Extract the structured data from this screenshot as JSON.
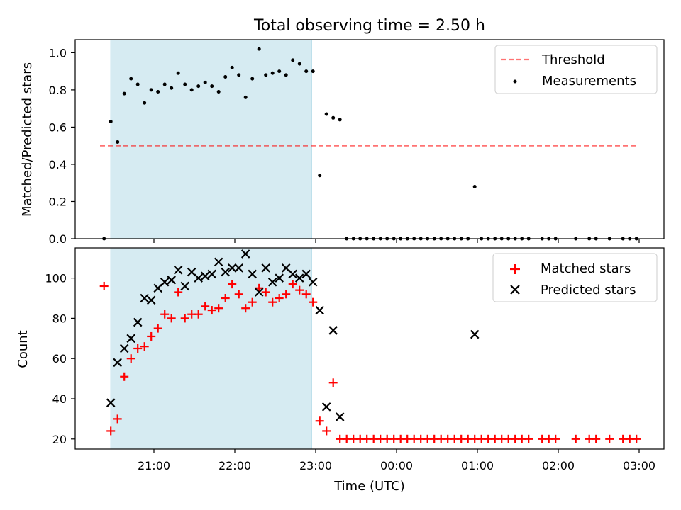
{
  "figure": {
    "title": "Total observing time = 2.50 h"
  },
  "chart_data": [
    {
      "type": "scatter",
      "panel": "top",
      "ylabel": "Matched/Predicted stars",
      "ylim": [
        0,
        1.07
      ],
      "yticks": [
        0.0,
        0.2,
        0.4,
        0.6,
        0.8,
        1.0
      ],
      "ytick_labels": [
        "0.0",
        "0.2",
        "0.4",
        "0.6",
        "0.8",
        "1.0"
      ],
      "xticks": [
        "21:00",
        "22:00",
        "23:00",
        "00:00",
        "01:00",
        "02:00",
        "03:00"
      ],
      "highlight_span": {
        "x": [
          "20:28",
          "22:57"
        ],
        "color": "#add8e6"
      },
      "threshold": {
        "name": "Threshold",
        "value": 0.5,
        "x": [
          "20:20",
          "02:58"
        ],
        "color": "#ff0000",
        "style": "dashed"
      },
      "legend": {
        "position": "top-right",
        "entries": [
          "Threshold",
          "Measurements"
        ]
      },
      "series": [
        {
          "name": "Measurements",
          "color": "#000000",
          "marker": "dot",
          "points": [
            [
              "20:23",
              0.0
            ],
            [
              "20:28",
              0.63
            ],
            [
              "20:33",
              0.52
            ],
            [
              "20:38",
              0.78
            ],
            [
              "20:43",
              0.86
            ],
            [
              "20:48",
              0.83
            ],
            [
              "20:53",
              0.73
            ],
            [
              "20:58",
              0.8
            ],
            [
              "21:03",
              0.79
            ],
            [
              "21:08",
              0.83
            ],
            [
              "21:13",
              0.81
            ],
            [
              "21:18",
              0.89
            ],
            [
              "21:23",
              0.83
            ],
            [
              "21:28",
              0.8
            ],
            [
              "21:33",
              0.82
            ],
            [
              "21:38",
              0.84
            ],
            [
              "21:43",
              0.82
            ],
            [
              "21:48",
              0.79
            ],
            [
              "21:53",
              0.87
            ],
            [
              "21:58",
              0.92
            ],
            [
              "22:03",
              0.88
            ],
            [
              "22:08",
              0.76
            ],
            [
              "22:13",
              0.86
            ],
            [
              "22:18",
              1.02
            ],
            [
              "22:23",
              0.88
            ],
            [
              "22:28",
              0.89
            ],
            [
              "22:33",
              0.9
            ],
            [
              "22:38",
              0.88
            ],
            [
              "22:43",
              0.96
            ],
            [
              "22:48",
              0.94
            ],
            [
              "22:53",
              0.9
            ],
            [
              "22:58",
              0.9
            ],
            [
              "23:03",
              0.34
            ],
            [
              "23:08",
              0.67
            ],
            [
              "23:13",
              0.65
            ],
            [
              "23:18",
              0.64
            ],
            [
              "23:23",
              0.0
            ],
            [
              "23:28",
              0.0
            ],
            [
              "23:33",
              0.0
            ],
            [
              "23:38",
              0.0
            ],
            [
              "23:43",
              0.0
            ],
            [
              "23:48",
              0.0
            ],
            [
              "23:53",
              0.0
            ],
            [
              "23:58",
              0.0
            ],
            [
              "00:03",
              0.0
            ],
            [
              "00:08",
              0.0
            ],
            [
              "00:13",
              0.0
            ],
            [
              "00:18",
              0.0
            ],
            [
              "00:23",
              0.0
            ],
            [
              "00:28",
              0.0
            ],
            [
              "00:33",
              0.0
            ],
            [
              "00:38",
              0.0
            ],
            [
              "00:43",
              0.0
            ],
            [
              "00:48",
              0.0
            ],
            [
              "00:53",
              0.0
            ],
            [
              "00:58",
              0.28
            ],
            [
              "01:03",
              0.0
            ],
            [
              "01:08",
              0.0
            ],
            [
              "01:13",
              0.0
            ],
            [
              "01:18",
              0.0
            ],
            [
              "01:23",
              0.0
            ],
            [
              "01:28",
              0.0
            ],
            [
              "01:33",
              0.0
            ],
            [
              "01:38",
              0.0
            ],
            [
              "01:48",
              0.0
            ],
            [
              "01:53",
              0.0
            ],
            [
              "01:58",
              0.0
            ],
            [
              "02:13",
              0.0
            ],
            [
              "02:23",
              0.0
            ],
            [
              "02:28",
              0.0
            ],
            [
              "02:38",
              0.0
            ],
            [
              "02:48",
              0.0
            ],
            [
              "02:53",
              0.0
            ],
            [
              "02:58",
              0.0
            ]
          ]
        }
      ]
    },
    {
      "type": "scatter",
      "panel": "bottom",
      "xlabel": "Time (UTC)",
      "ylabel": "Count",
      "ylim": [
        15,
        115
      ],
      "yticks": [
        20,
        40,
        60,
        80,
        100
      ],
      "ytick_labels": [
        "20",
        "40",
        "60",
        "80",
        "100"
      ],
      "xticks": [
        "21:00",
        "22:00",
        "23:00",
        "00:00",
        "01:00",
        "02:00",
        "03:00"
      ],
      "highlight_span": {
        "x": [
          "20:28",
          "22:57"
        ],
        "color": "#add8e6"
      },
      "legend": {
        "position": "top-right",
        "entries": [
          "Matched stars",
          "Predicted stars"
        ]
      },
      "series": [
        {
          "name": "Matched stars",
          "color": "#ff0000",
          "marker": "plus",
          "points": [
            [
              "20:23",
              96
            ],
            [
              "20:28",
              24
            ],
            [
              "20:33",
              30
            ],
            [
              "20:38",
              51
            ],
            [
              "20:43",
              60
            ],
            [
              "20:48",
              65
            ],
            [
              "20:53",
              66
            ],
            [
              "20:58",
              71
            ],
            [
              "21:03",
              75
            ],
            [
              "21:08",
              82
            ],
            [
              "21:13",
              80
            ],
            [
              "21:18",
              93
            ],
            [
              "21:23",
              80
            ],
            [
              "21:28",
              82
            ],
            [
              "21:33",
              82
            ],
            [
              "21:38",
              86
            ],
            [
              "21:43",
              84
            ],
            [
              "21:48",
              85
            ],
            [
              "21:53",
              90
            ],
            [
              "21:58",
              97
            ],
            [
              "22:03",
              92
            ],
            [
              "22:08",
              85
            ],
            [
              "22:13",
              88
            ],
            [
              "22:18",
              95
            ],
            [
              "22:23",
              93
            ],
            [
              "22:28",
              88
            ],
            [
              "22:33",
              90
            ],
            [
              "22:38",
              92
            ],
            [
              "22:43",
              97
            ],
            [
              "22:48",
              94
            ],
            [
              "22:53",
              92
            ],
            [
              "22:58",
              88
            ],
            [
              "23:03",
              29
            ],
            [
              "23:08",
              24
            ],
            [
              "23:13",
              48
            ],
            [
              "23:18",
              20
            ],
            [
              "23:23",
              20
            ],
            [
              "23:28",
              20
            ],
            [
              "23:33",
              20
            ],
            [
              "23:38",
              20
            ],
            [
              "23:43",
              20
            ],
            [
              "23:48",
              20
            ],
            [
              "23:53",
              20
            ],
            [
              "23:58",
              20
            ],
            [
              "00:03",
              20
            ],
            [
              "00:08",
              20
            ],
            [
              "00:13",
              20
            ],
            [
              "00:18",
              20
            ],
            [
              "00:23",
              20
            ],
            [
              "00:28",
              20
            ],
            [
              "00:33",
              20
            ],
            [
              "00:38",
              20
            ],
            [
              "00:43",
              20
            ],
            [
              "00:48",
              20
            ],
            [
              "00:53",
              20
            ],
            [
              "00:58",
              20
            ],
            [
              "01:03",
              20
            ],
            [
              "01:08",
              20
            ],
            [
              "01:13",
              20
            ],
            [
              "01:18",
              20
            ],
            [
              "01:23",
              20
            ],
            [
              "01:28",
              20
            ],
            [
              "01:33",
              20
            ],
            [
              "01:38",
              20
            ],
            [
              "01:48",
              20
            ],
            [
              "01:53",
              20
            ],
            [
              "01:58",
              20
            ],
            [
              "02:13",
              20
            ],
            [
              "02:23",
              20
            ],
            [
              "02:28",
              20
            ],
            [
              "02:38",
              20
            ],
            [
              "02:48",
              20
            ],
            [
              "02:53",
              20
            ],
            [
              "02:58",
              20
            ]
          ]
        },
        {
          "name": "Predicted stars",
          "color": "#000000",
          "marker": "x",
          "points": [
            [
              "20:28",
              38
            ],
            [
              "20:33",
              58
            ],
            [
              "20:38",
              65
            ],
            [
              "20:43",
              70
            ],
            [
              "20:48",
              78
            ],
            [
              "20:53",
              90
            ],
            [
              "20:58",
              89
            ],
            [
              "21:03",
              95
            ],
            [
              "21:08",
              98
            ],
            [
              "21:13",
              99
            ],
            [
              "21:18",
              104
            ],
            [
              "21:23",
              96
            ],
            [
              "21:28",
              103
            ],
            [
              "21:33",
              100
            ],
            [
              "21:38",
              101
            ],
            [
              "21:43",
              102
            ],
            [
              "21:48",
              108
            ],
            [
              "21:53",
              103
            ],
            [
              "21:58",
              105
            ],
            [
              "22:03",
              105
            ],
            [
              "22:08",
              112
            ],
            [
              "22:13",
              102
            ],
            [
              "22:18",
              93
            ],
            [
              "22:23",
              105
            ],
            [
              "22:28",
              98
            ],
            [
              "22:33",
              100
            ],
            [
              "22:38",
              105
            ],
            [
              "22:43",
              102
            ],
            [
              "22:48",
              100
            ],
            [
              "22:53",
              102
            ],
            [
              "22:58",
              98
            ],
            [
              "23:03",
              84
            ],
            [
              "23:08",
              36
            ],
            [
              "23:13",
              74
            ],
            [
              "23:18",
              31
            ],
            [
              "00:58",
              72
            ]
          ]
        }
      ]
    }
  ]
}
